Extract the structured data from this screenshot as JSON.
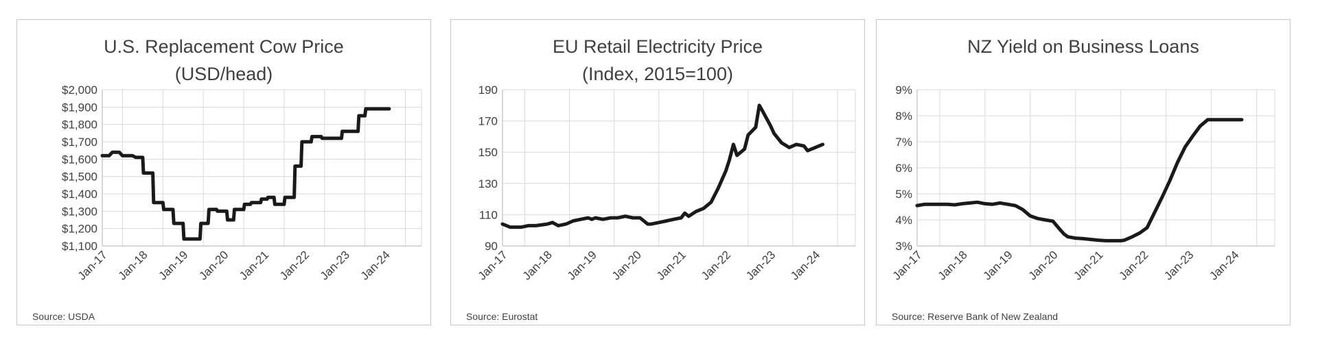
{
  "chart_data": [
    {
      "type": "line",
      "title": "U.S. Replacement Cow Price",
      "subtitle": "(USD/head)",
      "source": "Source:  USDA",
      "xlabel": "",
      "ylabel": "",
      "x_tick_labels": [
        "Jan-17",
        "Jan-18",
        "Jan-19",
        "Jan-20",
        "Jan-21",
        "Jan-22",
        "Jan-23",
        "Jan-24"
      ],
      "y_ticks": [
        1100,
        1200,
        1300,
        1400,
        1500,
        1600,
        1700,
        1800,
        1900,
        2000
      ],
      "y_tick_labels": [
        "$1,100",
        "$1,200",
        "$1,300",
        "$1,400",
        "$1,500",
        "$1,600",
        "$1,700",
        "$1,800",
        "$1,900",
        "$2,000"
      ],
      "ylim": [
        1100,
        2000
      ],
      "xlim": [
        2017.0,
        2024.9
      ],
      "grid": true,
      "series": [
        {
          "x": [
            2017.0,
            2017.17,
            2017.25,
            2017.42,
            2017.5,
            2017.75,
            2017.83,
            2018.0,
            2018.02,
            2018.25,
            2018.27,
            2018.5,
            2018.52,
            2018.75,
            2018.77,
            2019.0,
            2019.02,
            2019.42,
            2019.44,
            2019.62,
            2019.64,
            2019.83,
            2019.85,
            2020.08,
            2020.1,
            2020.25,
            2020.27,
            2020.5,
            2020.52,
            2020.67,
            2020.69,
            2020.92,
            2020.94,
            2021.08,
            2021.1,
            2021.25,
            2021.27,
            2021.5,
            2021.52,
            2021.75,
            2021.77,
            2021.92,
            2021.94,
            2022.17,
            2022.19,
            2022.42,
            2022.44,
            2022.67,
            2022.69,
            2022.92,
            2022.94,
            2023.33,
            2023.35,
            2023.5,
            2023.52,
            2023.75,
            2023.77,
            2023.92,
            2023.94,
            2024.08,
            2024.1
          ],
          "y": [
            1620,
            1620,
            1640,
            1640,
            1620,
            1620,
            1610,
            1610,
            1520,
            1520,
            1350,
            1350,
            1310,
            1310,
            1230,
            1230,
            1140,
            1140,
            1230,
            1230,
            1310,
            1310,
            1300,
            1300,
            1250,
            1250,
            1310,
            1310,
            1340,
            1340,
            1350,
            1350,
            1370,
            1370,
            1380,
            1380,
            1340,
            1340,
            1380,
            1380,
            1560,
            1560,
            1700,
            1700,
            1730,
            1730,
            1720,
            1720,
            1720,
            1720,
            1760,
            1760,
            1850,
            1850,
            1890,
            1890,
            1890,
            1890,
            1890,
            1890,
            1890
          ]
        }
      ]
    },
    {
      "type": "line",
      "title": "EU Retail Electricity Price",
      "subtitle": "(Index, 2015=100)",
      "source": "Source:  Eurostat",
      "xlabel": "",
      "ylabel": "",
      "x_tick_labels": [
        "Jan-17",
        "Jan-18",
        "Jan-19",
        "Jan-20",
        "Jan-21",
        "Jan-22",
        "Jan-23",
        "Jan-24"
      ],
      "y_ticks": [
        90,
        110,
        130,
        150,
        170,
        190
      ],
      "y_tick_labels": [
        "90",
        "110",
        "130",
        "150",
        "170",
        "190"
      ],
      "ylim": [
        90,
        190
      ],
      "xlim": [
        2017.0,
        2024.9
      ],
      "grid": true,
      "series": [
        {
          "x": [
            2017.0,
            2017.17,
            2017.42,
            2017.58,
            2017.75,
            2018.0,
            2018.12,
            2018.25,
            2018.42,
            2018.58,
            2018.75,
            2018.92,
            2019.0,
            2019.08,
            2019.25,
            2019.42,
            2019.58,
            2019.75,
            2019.92,
            2020.08,
            2020.25,
            2020.33,
            2020.5,
            2020.67,
            2020.83,
            2021.0,
            2021.08,
            2021.17,
            2021.33,
            2021.5,
            2021.67,
            2021.83,
            2022.0,
            2022.08,
            2022.17,
            2022.25,
            2022.42,
            2022.5,
            2022.67,
            2022.75,
            2022.83,
            2023.0,
            2023.08,
            2023.25,
            2023.42,
            2023.58,
            2023.75,
            2023.83,
            2023.92,
            2024.0,
            2024.17
          ],
          "y": [
            104,
            102,
            102,
            103,
            103,
            104,
            105,
            103,
            104,
            106,
            107,
            108,
            107,
            108,
            107,
            108,
            108,
            109,
            108,
            108,
            104,
            104,
            105,
            106,
            107,
            108,
            111,
            109,
            112,
            114,
            118,
            127,
            138,
            145,
            155,
            148,
            152,
            161,
            166,
            180,
            176,
            167,
            162,
            156,
            153,
            155,
            154,
            151,
            152,
            153,
            155
          ]
        }
      ]
    },
    {
      "type": "line",
      "title": "NZ Yield on Business Loans",
      "subtitle": "",
      "source": "Source:  Reserve  Bank of New Zealand",
      "xlabel": "",
      "ylabel": "",
      "x_tick_labels": [
        "Jan-17",
        "Jan-18",
        "Jan-19",
        "Jan-20",
        "Jan-21",
        "Jan-22",
        "Jan-23",
        "Jan-24"
      ],
      "y_ticks": [
        3,
        4,
        5,
        6,
        7,
        8,
        9
      ],
      "y_tick_labels": [
        "3%",
        "4%",
        "5%",
        "6%",
        "7%",
        "8%",
        "9%"
      ],
      "ylim": [
        3,
        9
      ],
      "xlim": [
        2017.0,
        2024.9
      ],
      "grid": true,
      "series": [
        {
          "x": [
            2017.0,
            2017.17,
            2017.33,
            2017.5,
            2017.67,
            2017.83,
            2018.0,
            2018.17,
            2018.33,
            2018.5,
            2018.67,
            2018.83,
            2019.0,
            2019.17,
            2019.33,
            2019.5,
            2019.67,
            2019.83,
            2020.0,
            2020.17,
            2020.25,
            2020.33,
            2020.5,
            2020.67,
            2020.83,
            2021.0,
            2021.17,
            2021.33,
            2021.5,
            2021.58,
            2021.75,
            2021.92,
            2022.08,
            2022.25,
            2022.42,
            2022.58,
            2022.75,
            2022.92,
            2023.08,
            2023.25,
            2023.42,
            2023.58,
            2023.75,
            2023.92,
            2024.08,
            2024.17
          ],
          "y": [
            4.55,
            4.6,
            4.6,
            4.6,
            4.6,
            4.58,
            4.62,
            4.65,
            4.68,
            4.62,
            4.6,
            4.65,
            4.6,
            4.55,
            4.4,
            4.15,
            4.05,
            4.0,
            3.95,
            3.6,
            3.45,
            3.35,
            3.3,
            3.28,
            3.25,
            3.22,
            3.2,
            3.2,
            3.2,
            3.22,
            3.35,
            3.5,
            3.7,
            4.3,
            4.9,
            5.5,
            6.2,
            6.8,
            7.2,
            7.6,
            7.85,
            7.85,
            7.85,
            7.85,
            7.85,
            7.85
          ]
        }
      ]
    }
  ]
}
